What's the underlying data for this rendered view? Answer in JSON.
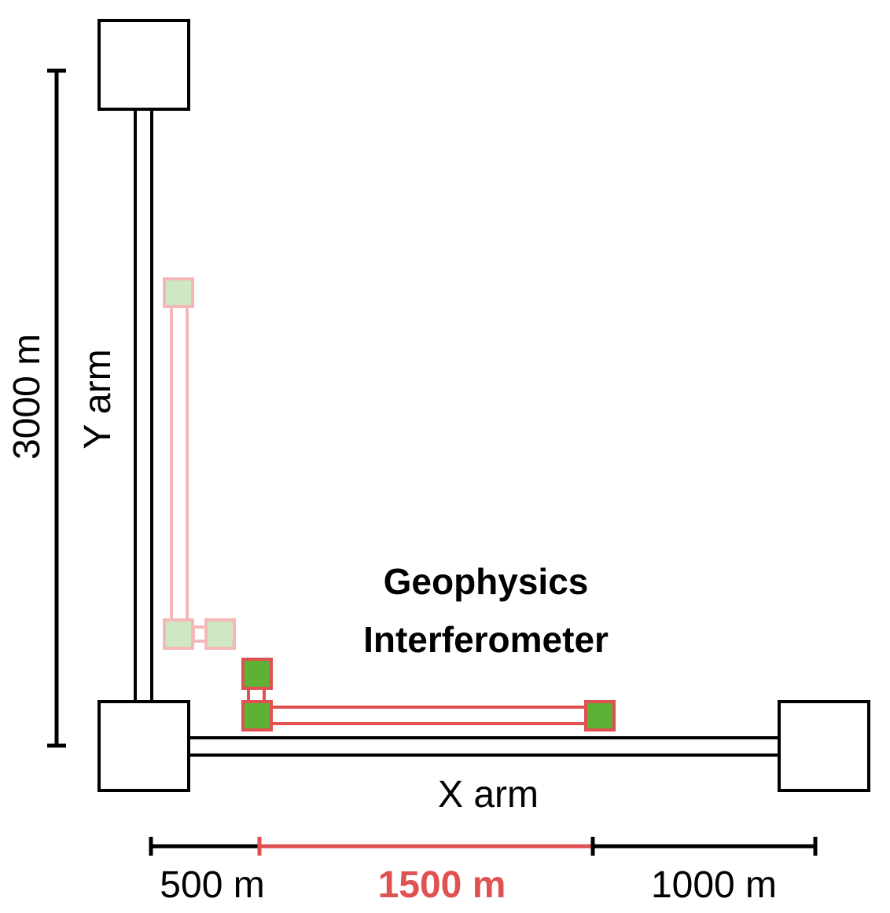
{
  "labels": {
    "height": "3000 m",
    "y_arm": "Y arm",
    "x_arm": "X arm",
    "title_line1": "Geophysics",
    "title_line2": "Interferometer",
    "scale_left": "500 m",
    "scale_mid": "1500 m",
    "scale_right": "1000 m"
  },
  "colors": {
    "line": "#000000",
    "accent_red": "#e05252",
    "mirror_green": "#5db236",
    "faded_red": "#f4b8b8",
    "faded_green": "#cfe8c3"
  }
}
